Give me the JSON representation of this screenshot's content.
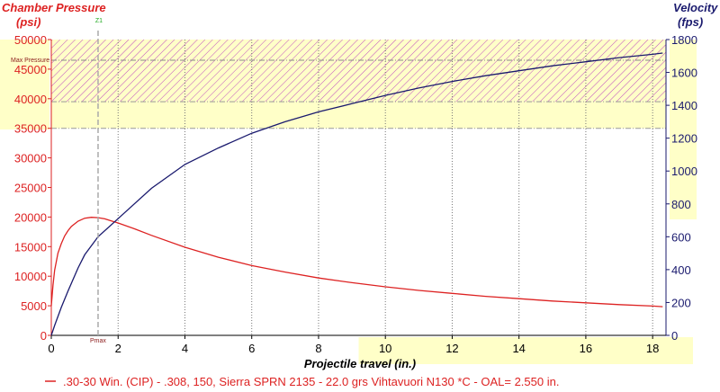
{
  "chart_data": {
    "type": "line",
    "y_left_title": "Chamber Pressure",
    "y_left_unit": "(psi)",
    "y_right_title": "Velocity",
    "y_right_unit": "(fps)",
    "xlabel": "Projectile travel (in.)",
    "xlim": [
      0,
      18.4
    ],
    "ylim_left": [
      0,
      50000
    ],
    "ylim_right": [
      0,
      1800
    ],
    "x_ticks": [
      "0",
      "2",
      "4",
      "6",
      "8",
      "10",
      "12",
      "14",
      "16",
      "18"
    ],
    "y_left_ticks": [
      "0",
      "5000",
      "10000",
      "15000",
      "20000",
      "25000",
      "30000",
      "35000",
      "40000",
      "45000",
      "50000"
    ],
    "y_right_ticks": [
      "0",
      "200",
      "400",
      "600",
      "800",
      "1000",
      "1200",
      "1400",
      "1600",
      "1800"
    ],
    "grid": "vertical dotted",
    "zones": [
      {
        "from": 35000,
        "to": 50000,
        "fill": "yellow"
      },
      {
        "from": 39500,
        "to": 50000,
        "fill": "hatched"
      }
    ],
    "reference_lines": {
      "max_pressure": {
        "label": "Max Pressure",
        "value": 46500
      },
      "pmax": {
        "label": "Pmax",
        "x": 1.4
      },
      "z1": {
        "label": "Z1"
      }
    },
    "legend": {
      "label": ".30-30 Win. (CIP) - .308, 150, Sierra SPRN 2135 - 22.0 grs Vihtavuori N130 *C - OAL= 2.550 in.",
      "placement": "bottom"
    },
    "series": [
      {
        "axis": "left",
        "color": "#dd2222",
        "x": [
          0,
          0.05,
          0.1,
          0.2,
          0.3,
          0.4,
          0.5,
          0.6,
          0.8,
          1.0,
          1.2,
          1.4,
          1.6,
          1.8,
          2.0,
          2.5,
          3.0,
          4.0,
          5.0,
          6.0,
          7.0,
          8.0,
          9.0,
          10.0,
          11.0,
          12.0,
          13.0,
          14.0,
          15.0,
          16.0,
          17.0,
          18.0,
          18.3
        ],
        "values": [
          5000,
          8500,
          11000,
          13900,
          15500,
          16800,
          17700,
          18400,
          19300,
          19800,
          19950,
          19900,
          19700,
          19350,
          19000,
          18000,
          16900,
          14900,
          13200,
          11800,
          10700,
          9700,
          8900,
          8200,
          7600,
          7100,
          6600,
          6200,
          5800,
          5500,
          5200,
          4950,
          4850
        ]
      },
      {
        "axis": "right",
        "color": "#1a1a6e",
        "x": [
          0,
          0.1,
          0.3,
          0.5,
          0.8,
          1.0,
          1.4,
          2.0,
          3.0,
          4.0,
          5.0,
          6.0,
          7.0,
          8.0,
          9.0,
          10.0,
          11.0,
          12.0,
          13.0,
          14.0,
          15.0,
          16.0,
          17.0,
          18.0,
          18.3
        ],
        "values": [
          0,
          60,
          170,
          270,
          410,
          490,
          600,
          710,
          895,
          1040,
          1140,
          1230,
          1300,
          1360,
          1410,
          1460,
          1505,
          1545,
          1580,
          1610,
          1640,
          1665,
          1690,
          1710,
          1718
        ]
      }
    ]
  }
}
